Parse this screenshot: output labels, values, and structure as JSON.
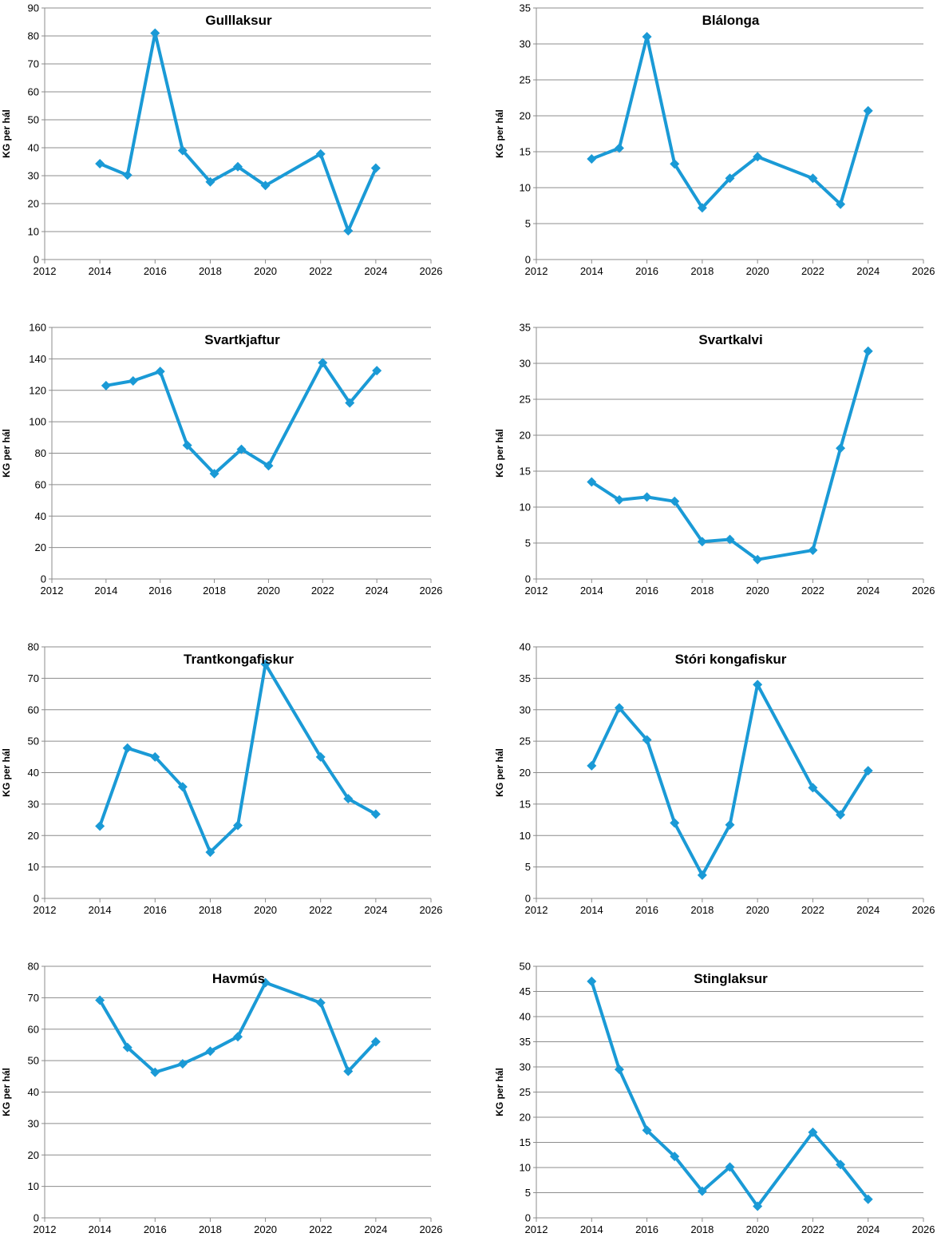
{
  "style": {
    "line_color": "#1a9ad6",
    "grid_color": "#8c8c8c",
    "marker": "diamond"
  },
  "chart_data": [
    {
      "type": "line",
      "title": "Gulllaksur",
      "ylabel": "KG per hál",
      "xlim": [
        2012,
        2026
      ],
      "xticks": [
        2012,
        2014,
        2016,
        2018,
        2020,
        2022,
        2024,
        2026
      ],
      "ylim": [
        0,
        90
      ],
      "ystep": 10,
      "grid": true,
      "x": [
        2014,
        2015,
        2016,
        2017,
        2018,
        2019,
        2020,
        2022,
        2023,
        2024
      ],
      "values": [
        34.3,
        30.2,
        81,
        39,
        27.8,
        33.2,
        26.5,
        37.8,
        10.3,
        32.7
      ]
    },
    {
      "type": "line",
      "title": "Blálonga",
      "ylabel": "KG per hál",
      "xlim": [
        2012,
        2026
      ],
      "xticks": [
        2012,
        2014,
        2016,
        2018,
        2020,
        2022,
        2024,
        2026
      ],
      "ylim": [
        0,
        35
      ],
      "ystep": 5,
      "grid": true,
      "x": [
        2014,
        2015,
        2016,
        2017,
        2018,
        2019,
        2020,
        2022,
        2023,
        2024
      ],
      "values": [
        14,
        15.5,
        31,
        13.3,
        7.2,
        11.3,
        14.3,
        11.3,
        7.7,
        20.7
      ]
    },
    {
      "type": "line",
      "title": "Svartkjaftur",
      "ylabel": "KG per hál",
      "xlim": [
        2012,
        2026
      ],
      "xticks": [
        2012,
        2014,
        2016,
        2018,
        2020,
        2022,
        2024,
        2026
      ],
      "ylim": [
        0,
        160
      ],
      "ystep": 20,
      "grid": true,
      "x": [
        2014,
        2015,
        2016,
        2017,
        2018,
        2019,
        2020,
        2022,
        2023,
        2024
      ],
      "values": [
        123,
        126,
        132,
        85,
        67,
        82.5,
        72,
        137.5,
        112,
        132.5
      ]
    },
    {
      "type": "line",
      "title": "Svartkalvi",
      "ylabel": "KG per hál",
      "xlim": [
        2012,
        2026
      ],
      "xticks": [
        2012,
        2014,
        2016,
        2018,
        2020,
        2022,
        2024,
        2026
      ],
      "ylim": [
        0,
        35
      ],
      "ystep": 5,
      "grid": true,
      "x": [
        2014,
        2015,
        2016,
        2017,
        2018,
        2019,
        2020,
        2022,
        2023,
        2024
      ],
      "values": [
        13.5,
        11,
        11.4,
        10.8,
        5.2,
        5.5,
        2.7,
        4,
        18.2,
        31.7
      ]
    },
    {
      "type": "line",
      "title": "Trantkongafiskur",
      "ylabel": "KG per hál",
      "xlim": [
        2012,
        2026
      ],
      "xticks": [
        2012,
        2014,
        2016,
        2018,
        2020,
        2022,
        2024,
        2026
      ],
      "ylim": [
        0,
        80
      ],
      "ystep": 10,
      "grid": true,
      "x": [
        2014,
        2015,
        2016,
        2017,
        2018,
        2019,
        2020,
        2022,
        2023,
        2024
      ],
      "values": [
        23,
        47.8,
        45,
        35.5,
        14.7,
        23.2,
        74.5,
        45,
        31.7,
        26.8
      ]
    },
    {
      "type": "line",
      "title": "Stóri kongafiskur",
      "ylabel": "KG per hál",
      "xlim": [
        2012,
        2026
      ],
      "xticks": [
        2012,
        2014,
        2016,
        2018,
        2020,
        2022,
        2024,
        2026
      ],
      "ylim": [
        0,
        40
      ],
      "ystep": 5,
      "grid": true,
      "x": [
        2014,
        2015,
        2016,
        2017,
        2018,
        2019,
        2020,
        2022,
        2023,
        2024
      ],
      "values": [
        21.1,
        30.3,
        25.2,
        12,
        3.7,
        11.7,
        34,
        17.6,
        13.3,
        20.3
      ]
    },
    {
      "type": "line",
      "title": "Havmús",
      "ylabel": "KG per hál",
      "xlim": [
        2012,
        2026
      ],
      "xticks": [
        2012,
        2014,
        2016,
        2018,
        2020,
        2022,
        2024,
        2026
      ],
      "ylim": [
        0,
        80
      ],
      "ystep": 10,
      "grid": true,
      "x": [
        2014,
        2015,
        2016,
        2017,
        2018,
        2019,
        2020,
        2022,
        2023,
        2024
      ],
      "values": [
        69.2,
        54.2,
        46.3,
        49,
        53,
        57.6,
        74.8,
        68.4,
        46.6,
        56
      ]
    },
    {
      "type": "line",
      "title": "Stinglaksur",
      "ylabel": "KG per hál",
      "xlim": [
        2012,
        2026
      ],
      "xticks": [
        2012,
        2014,
        2016,
        2018,
        2020,
        2022,
        2024,
        2026
      ],
      "ylim": [
        0,
        50
      ],
      "ystep": 5,
      "grid": true,
      "x": [
        2014,
        2015,
        2016,
        2017,
        2018,
        2019,
        2020,
        2022,
        2023,
        2024
      ],
      "values": [
        47,
        29.5,
        17.4,
        12.2,
        5.3,
        10.1,
        2.3,
        17,
        10.6,
        3.7
      ]
    }
  ]
}
